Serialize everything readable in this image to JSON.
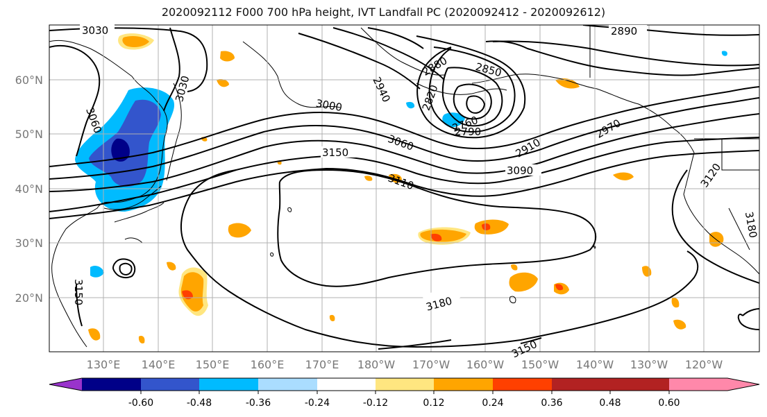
{
  "title": "2020092112 F000 700 hPa height, IVT Landfall PC (2020092412 - 2020092612)",
  "map": {
    "lat_labels": [
      "60°N",
      "50°N",
      "40°N",
      "30°N",
      "20°N"
    ],
    "lon_labels": [
      "130°E",
      "140°E",
      "150°E",
      "160°E",
      "170°E",
      "180°W",
      "170°W",
      "160°W",
      "150°W",
      "140°W",
      "130°W",
      "120°W"
    ],
    "contour_labels": [
      "3030",
      "3030",
      "3060",
      "2890",
      "2880",
      "2850",
      "2940",
      "2820",
      "3000",
      "2760",
      "2790",
      "2910",
      "2970",
      "3150",
      "3060",
      "3090",
      "3120",
      "3110",
      "3180",
      "3180",
      "3150",
      "3150"
    ]
  },
  "colorbar": {
    "tick_labels": [
      "-0.60",
      "-0.48",
      "-0.36",
      "-0.24",
      "-0.12",
      "0.12",
      "0.24",
      "0.36",
      "0.48",
      "0.60"
    ],
    "colors": [
      "#9933cc",
      "#000088",
      "#3355cc",
      "#00bbff",
      "#aaddff",
      "#ffffff",
      "#ffe680",
      "#ffa500",
      "#ff4000",
      "#b22222",
      "#ff88aa"
    ]
  }
}
